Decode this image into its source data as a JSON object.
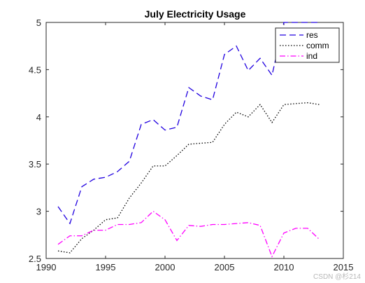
{
  "chart_data": {
    "type": "line",
    "title": "July Electricity Usage",
    "xlabel": "",
    "ylabel": "",
    "xlim": [
      1990,
      2015
    ],
    "ylim": [
      2.5,
      5
    ],
    "xticks": [
      1990,
      1995,
      2000,
      2005,
      2010,
      2015
    ],
    "yticks": [
      2.5,
      3,
      3.5,
      4,
      4.5,
      5
    ],
    "x": [
      1991,
      1992,
      1993,
      1994,
      1995,
      1996,
      1997,
      1998,
      1999,
      2000,
      2001,
      2002,
      2003,
      2004,
      2005,
      2006,
      2007,
      2008,
      2009,
      2010,
      2011,
      2012,
      2013
    ],
    "grid": false,
    "legend_position": "top-right",
    "series": [
      {
        "name": "res",
        "color": "#2000e0",
        "style": "dashed",
        "values": [
          3.05,
          2.87,
          3.26,
          3.34,
          3.36,
          3.42,
          3.53,
          3.92,
          3.97,
          3.86,
          3.89,
          4.31,
          4.22,
          4.18,
          4.66,
          4.75,
          4.49,
          4.62,
          4.44,
          5.0,
          5.0,
          5.0,
          5.0
        ]
      },
      {
        "name": "comm",
        "color": "#000000",
        "style": "dotted",
        "values": [
          2.58,
          2.56,
          2.71,
          2.8,
          2.91,
          2.93,
          3.14,
          3.3,
          3.48,
          3.48,
          3.59,
          3.71,
          3.72,
          3.73,
          3.92,
          4.05,
          4.0,
          4.13,
          3.94,
          4.13,
          4.14,
          4.15,
          4.13
        ]
      },
      {
        "name": "ind",
        "color": "#ff00ff",
        "style": "dashdot",
        "values": [
          2.65,
          2.74,
          2.74,
          2.8,
          2.8,
          2.86,
          2.86,
          2.88,
          3.0,
          2.91,
          2.69,
          2.85,
          2.84,
          2.86,
          2.86,
          2.87,
          2.88,
          2.85,
          2.52,
          2.77,
          2.82,
          2.82,
          2.7
        ]
      }
    ]
  },
  "watermark": "CSDN @杉214"
}
